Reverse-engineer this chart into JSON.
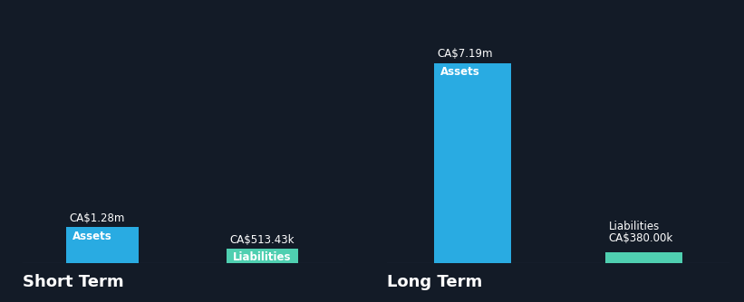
{
  "background_color": "#131b27",
  "values": {
    "Short Term": {
      "Assets": 1.28,
      "Liabilities": 0.51343
    },
    "Long Term": {
      "Assets": 7.19,
      "Liabilities": 0.38
    }
  },
  "labels": {
    "Short Term": {
      "Assets": "CA$1.28m",
      "Liabilities": "CA$513.43k"
    },
    "Long Term": {
      "Assets": "CA$7.19m",
      "Liabilities": "CA$380.00k"
    }
  },
  "bar_colors": {
    "Assets": "#29abe2",
    "Liabilities": "#4fcfb0"
  },
  "text_color": "#ffffff",
  "section_title_color": "#ffffff",
  "global_max": 7.19,
  "font_size_value": 8.5,
  "font_size_cat": 8.5,
  "font_size_section": 13,
  "bar_width": 0.45,
  "bottom_line_color": "#3a5070"
}
